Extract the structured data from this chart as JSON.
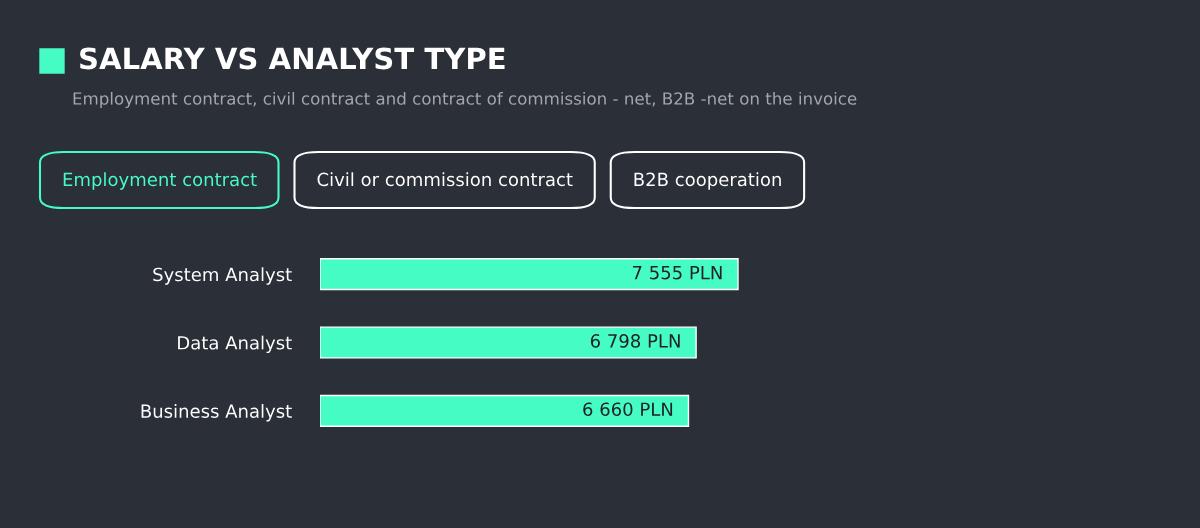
{
  "chart_data": {
    "type": "bar",
    "orientation": "horizontal",
    "title": "SALARY VS ANALYST TYPE",
    "subtitle": "Employment contract, civil contract and contract of commission - net, B2B -net on the invoice",
    "annotations": [
      "Employment contract",
      "Civil or commission contract",
      "B2B cooperation"
    ],
    "categories": [
      "System Analyst",
      "Data Analyst",
      "Business Analyst"
    ],
    "values": [
      7555,
      6798,
      6660
    ],
    "value_labels": [
      "7 555 PLN",
      "6 798 PLN",
      "6 660 PLN"
    ],
    "color": "#45fdc4",
    "tick_labels": "y",
    "grid": false,
    "legend": false
  }
}
